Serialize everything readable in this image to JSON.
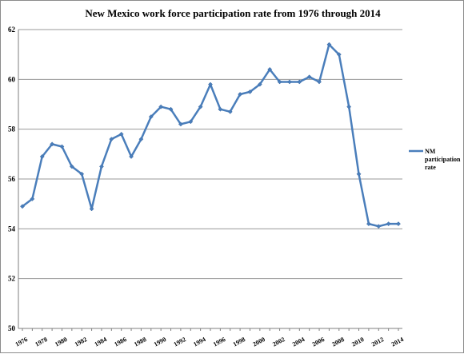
{
  "chart_data": {
    "type": "line",
    "title": "New Mexico work force participation rate from 1976 through 2014",
    "xlabel": "",
    "ylabel": "",
    "ylim": [
      50,
      62
    ],
    "yticks": [
      "50",
      "52",
      "54",
      "56",
      "58",
      "60",
      "62"
    ],
    "x": [
      1976,
      1977,
      1978,
      1979,
      1980,
      1981,
      1982,
      1983,
      1984,
      1985,
      1986,
      1987,
      1988,
      1989,
      1990,
      1991,
      1992,
      1993,
      1994,
      1995,
      1996,
      1997,
      1998,
      1999,
      2000,
      2001,
      2002,
      2003,
      2004,
      2005,
      2006,
      2007,
      2008,
      2009,
      2010,
      2011,
      2012,
      2013,
      2014
    ],
    "xtick_labels": [
      "1976",
      "1978",
      "1980",
      "1982",
      "1984",
      "1986",
      "1988",
      "1990",
      "1992",
      "1994",
      "1996",
      "1998",
      "2000",
      "2002",
      "2004",
      "2006",
      "2008",
      "2010",
      "2012",
      "2014"
    ],
    "grid": true,
    "legend_position": "right",
    "series": [
      {
        "name": "NM participation rate",
        "color": "#4a7ebb",
        "values": [
          54.9,
          55.2,
          56.9,
          57.4,
          57.3,
          56.5,
          56.2,
          54.8,
          56.5,
          57.6,
          57.8,
          56.9,
          57.6,
          58.5,
          58.9,
          58.8,
          58.2,
          58.3,
          58.9,
          59.8,
          58.8,
          58.7,
          59.4,
          59.5,
          59.8,
          60.4,
          59.9,
          59.9,
          59.9,
          60.1,
          59.9,
          61.4,
          61.0,
          58.9,
          56.2,
          54.2,
          54.1,
          54.2,
          54.2
        ]
      }
    ]
  }
}
